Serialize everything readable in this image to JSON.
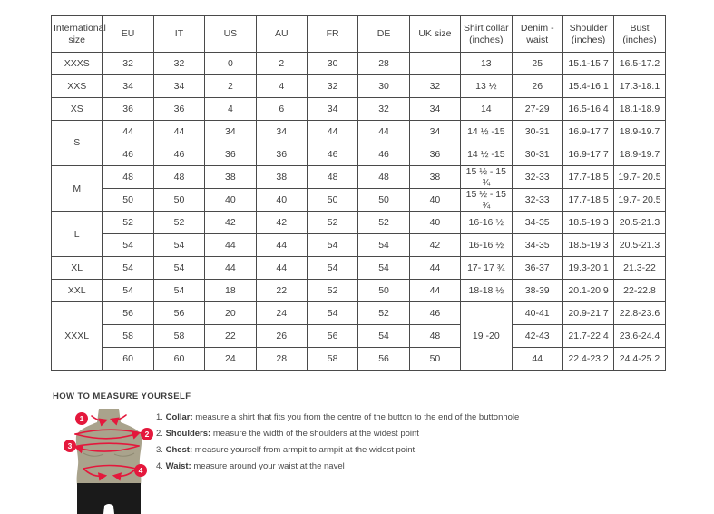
{
  "colors": {
    "accent_red": "#e4183c",
    "mannequin": "#a9a38c",
    "shorts": "#1a1a1a",
    "table_border": "#4a4a4a",
    "text": "#3e3e3e"
  },
  "table": {
    "headers": [
      "International size",
      "EU",
      "IT",
      "US",
      "AU",
      "FR",
      "DE",
      "UK size",
      "Shirt collar (inches)",
      "Denim - waist",
      "Shoulder (inches)",
      "Bust (inches)"
    ],
    "groups": [
      {
        "size": "XXXS",
        "rows": [
          [
            "32",
            "32",
            "0",
            "2",
            "30",
            "28",
            "",
            "13",
            "25",
            "15.1-15.7",
            "16.5-17.2"
          ]
        ]
      },
      {
        "size": "XXS",
        "rows": [
          [
            "34",
            "34",
            "2",
            "4",
            "32",
            "30",
            "32",
            "13 ½",
            "26",
            "15.4-16.1",
            "17.3-18.1"
          ]
        ]
      },
      {
        "size": "XS",
        "rows": [
          [
            "36",
            "36",
            "4",
            "6",
            "34",
            "32",
            "34",
            "14",
            "27-29",
            "16.5-16.4",
            "18.1-18.9"
          ]
        ]
      },
      {
        "size": "S",
        "rows": [
          [
            "44",
            "44",
            "34",
            "34",
            "44",
            "44",
            "34",
            "14 ½ -15",
            "30-31",
            "16.9-17.7",
            "18.9-19.7"
          ],
          [
            "46",
            "46",
            "36",
            "36",
            "46",
            "46",
            "36",
            "14 ½ -15",
            "30-31",
            "16.9-17.7",
            "18.9-19.7"
          ]
        ]
      },
      {
        "size": "M",
        "rows": [
          [
            "48",
            "48",
            "38",
            "38",
            "48",
            "48",
            "38",
            "15 ½ - 15 ¾",
            "32-33",
            "17.7-18.5",
            "19.7- 20.5"
          ],
          [
            "50",
            "50",
            "40",
            "40",
            "50",
            "50",
            "40",
            "15 ½ - 15 ¾",
            "32-33",
            "17.7-18.5",
            "19.7- 20.5"
          ]
        ]
      },
      {
        "size": "L",
        "rows": [
          [
            "52",
            "52",
            "42",
            "42",
            "52",
            "52",
            "40",
            "16-16 ½",
            "34-35",
            "18.5-19.3",
            "20.5-21.3"
          ],
          [
            "54",
            "54",
            "44",
            "44",
            "54",
            "54",
            "42",
            "16-16 ½",
            "34-35",
            "18.5-19.3",
            "20.5-21.3"
          ]
        ]
      },
      {
        "size": "XL",
        "rows": [
          [
            "54",
            "54",
            "44",
            "44",
            "54",
            "54",
            "44",
            "17- 17 ¾",
            "36-37",
            "19.3-20.1",
            "21.3-22"
          ]
        ]
      },
      {
        "size": "XXL",
        "rows": [
          [
            "54",
            "54",
            "18",
            "22",
            "52",
            "50",
            "44",
            "18-18 ½",
            "38-39",
            "20.1-20.9",
            "22-22.8"
          ]
        ]
      },
      {
        "size": "XXXL",
        "collar_merged": "19 -20",
        "rows": [
          [
            "56",
            "56",
            "20",
            "24",
            "54",
            "52",
            "46",
            "40-41",
            "20.9-21.7",
            "22.8-23.6"
          ],
          [
            "58",
            "58",
            "22",
            "26",
            "56",
            "54",
            "48",
            "42-43",
            "21.7-22.4",
            "23.6-24.4"
          ],
          [
            "60",
            "60",
            "24",
            "28",
            "58",
            "56",
            "50",
            "44",
            "22.4-23.2",
            "24.4-25.2"
          ]
        ]
      }
    ]
  },
  "measure": {
    "title": "HOW TO MEASURE YOURSELF",
    "items": [
      {
        "num": "1.",
        "label": "Collar:",
        "text": " measure a shirt that fits you from the centre of the button to the end of the buttonhole"
      },
      {
        "num": "2.",
        "label": "Shoulders:",
        "text": " measure the width of the shoulders at the widest point"
      },
      {
        "num": "3.",
        "label": "Chest:",
        "text": " measure yourself from armpit to armpit at the widest point"
      },
      {
        "num": "4.",
        "label": "Waist:",
        "text": " measure around your waist at the navel"
      }
    ],
    "figure_numbers": [
      "1",
      "2",
      "3",
      "4"
    ]
  }
}
